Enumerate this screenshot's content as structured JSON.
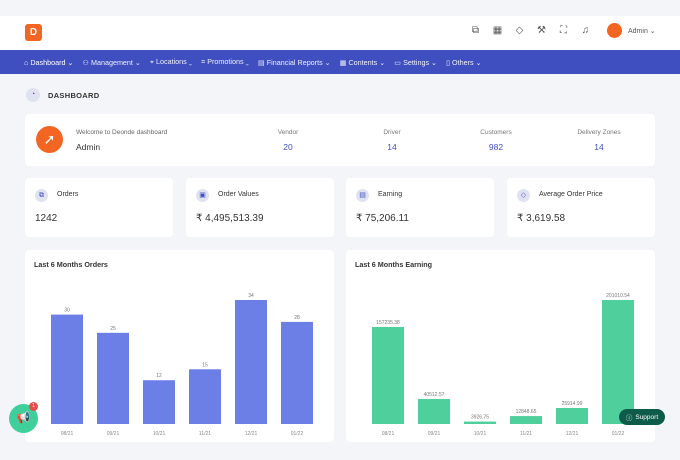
{
  "topbar": {
    "logo_letter": "D",
    "icons": [
      "copy-icon",
      "store-icon",
      "tag-icon",
      "wrench-icon",
      "fullscreen-icon",
      "bell-icon"
    ],
    "admin_label": "Admin ⌄"
  },
  "nav": {
    "items": [
      {
        "label": "⌂ Dashboard ⌄"
      },
      {
        "label": "⚇ Management ⌄"
      },
      {
        "label": "⌖ Locations ⌄"
      },
      {
        "label": "⌗ Promotions ⌄"
      },
      {
        "label": "▤ Financial Reports ⌄"
      },
      {
        "label": "▦ Contents ⌄"
      },
      {
        "label": "▭ Settings ⌄"
      },
      {
        "label": "▯ Others ⌄"
      }
    ]
  },
  "page": {
    "title": "DASHBOARD"
  },
  "welcome": {
    "greeting": "Welcome to Deonde dashboard",
    "name": "Admin",
    "stats": [
      {
        "label": "Vendor",
        "value": "20"
      },
      {
        "label": "Driver",
        "value": "14"
      },
      {
        "label": "Customers",
        "value": "982"
      },
      {
        "label": "Delivery Zones",
        "value": "14"
      }
    ]
  },
  "kpis": [
    {
      "label": "Orders",
      "value": "1242",
      "icon": "orders-icon"
    },
    {
      "label": "Order Values",
      "value": "₹ 4,495,513.39",
      "icon": "wallet-icon"
    },
    {
      "label": "Earning",
      "value": "₹ 75,206.11",
      "icon": "earning-icon"
    },
    {
      "label": "Average Order Price",
      "value": "₹ 3,619.58",
      "icon": "price-tag-icon"
    }
  ],
  "charts": {
    "orders_title": "Last 6 Months Orders",
    "earning_title": "Last 6 Months Earning"
  },
  "chart_data": [
    {
      "type": "bar",
      "title": "Last 6 Months Orders",
      "categories": [
        "08/21",
        "09/21",
        "10/21",
        "11/21",
        "12/21",
        "01/22"
      ],
      "values": [
        30,
        25,
        12,
        15,
        34,
        28
      ],
      "labels": [
        "30",
        "25",
        "12",
        "15",
        "34",
        "28"
      ],
      "color": "#6b7fe6"
    },
    {
      "type": "bar",
      "title": "Last 6 Months Earning",
      "categories": [
        "08/21",
        "09/21",
        "10/21",
        "11/21",
        "12/21",
        "01/22"
      ],
      "values": [
        157235.38,
        40512.57,
        3926.75,
        12848.65,
        25914.99,
        201010.54
      ],
      "labels": [
        "157235.38",
        "40512.57",
        "3926.75",
        "12848.65",
        "25914.99",
        "201010.54"
      ],
      "color": "#4ecf9b"
    }
  ],
  "support": {
    "label": "Support"
  },
  "fab": {
    "badge": "1"
  }
}
